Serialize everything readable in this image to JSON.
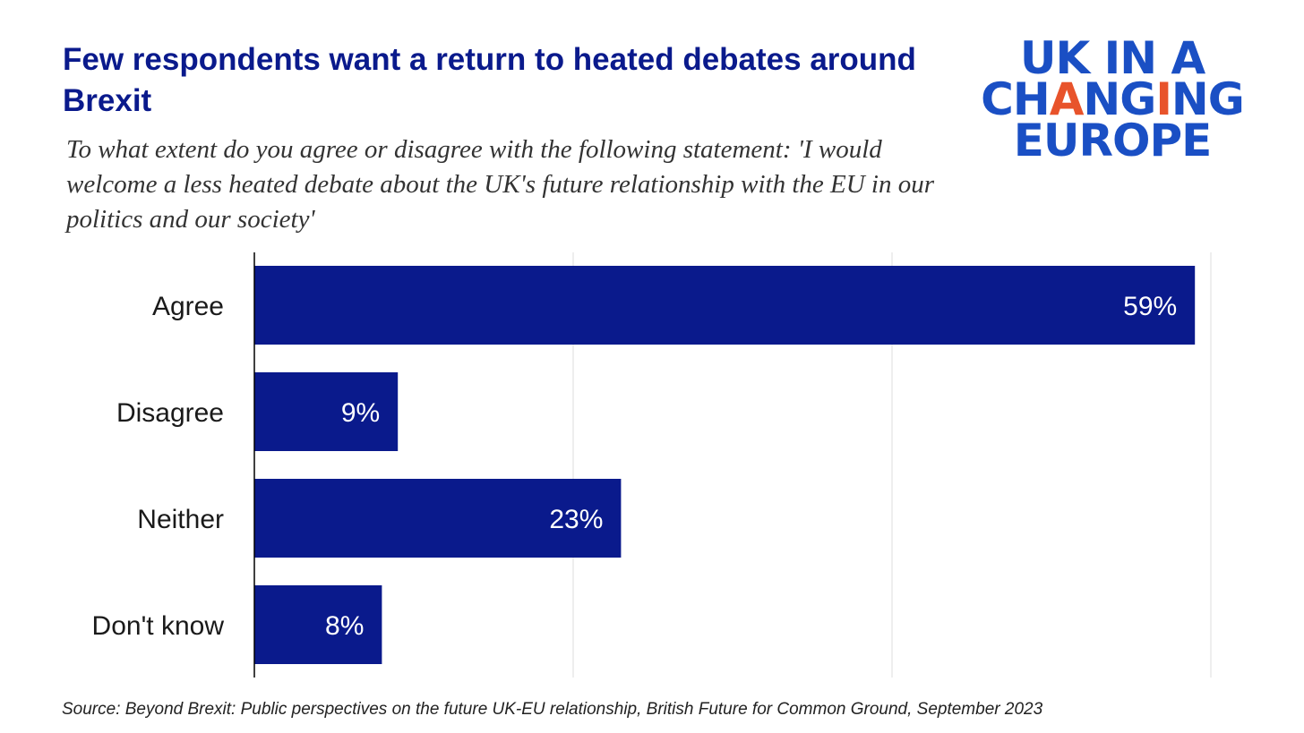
{
  "title": "Few respondents want a return to heated debates around Brexit",
  "subtitle": "To what extent do you agree or disagree with the following statement: 'I would welcome a less heated debate about the UK's future relationship with the EU in our politics and our society'",
  "logo": {
    "line1": "UK IN A",
    "line2_parts": [
      "CH",
      "A",
      "NG",
      "I",
      "NG"
    ],
    "line3": "EUROPE",
    "color": "#1a4fc4",
    "accent_color": "#e8532b"
  },
  "source": "Source: Beyond Brexit: Public perspectives on the future UK-EU relationship, British Future for Common Ground, September 2023",
  "colors": {
    "bar": "#0a1a8c",
    "title": "#0a1a8c",
    "grid": "#e3e3e3",
    "axis": "#000000"
  },
  "chart_data": {
    "type": "bar",
    "orientation": "horizontal",
    "categories": [
      "Agree",
      "Disagree",
      "Neither",
      "Don't know"
    ],
    "values": [
      59,
      9,
      23,
      8
    ],
    "data_labels": [
      "59%",
      "9%",
      "23%",
      "8%"
    ],
    "xlim": [
      0,
      60
    ],
    "gridlines_at": [
      20,
      40,
      60
    ],
    "grid": true,
    "legend": "none",
    "bar_color": "#0a1a8c"
  }
}
